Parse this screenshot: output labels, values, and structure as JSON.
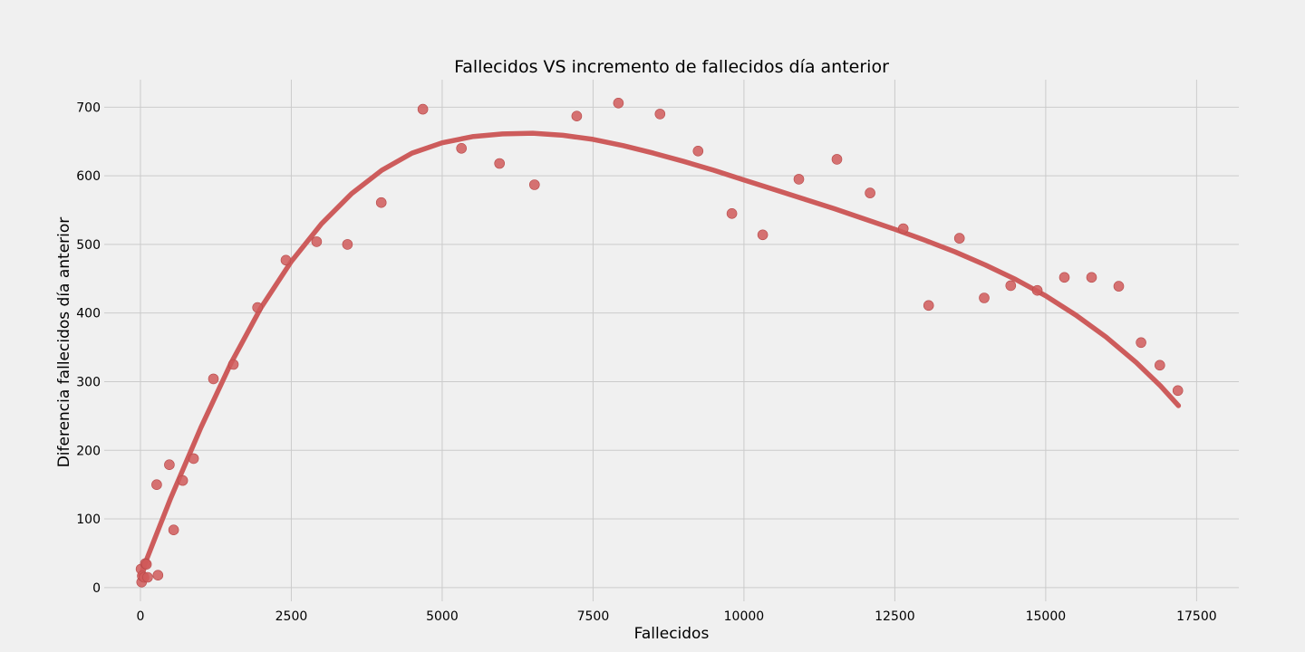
{
  "chart_data": {
    "type": "scatter",
    "title": "Fallecidos VS incremento de fallecidos día anterior",
    "xlabel": "Fallecidos",
    "ylabel": "Diferencia fallecidos día anterior",
    "xlim": [
      -600,
      18200
    ],
    "ylim": [
      -20,
      740
    ],
    "xticks": [
      0,
      2500,
      5000,
      7500,
      10000,
      12500,
      15000,
      17500
    ],
    "yticks": [
      0,
      100,
      200,
      300,
      400,
      500,
      600,
      700
    ],
    "grid": true,
    "point_color": "#d05a5a",
    "line_color": "#cd5c5c",
    "background_color": "#f0f0f0",
    "grid_color": "#cbcbcb",
    "series": [
      {
        "kind": "scatter",
        "points": [
          [
            10,
            27
          ],
          [
            20,
            8
          ],
          [
            30,
            17
          ],
          [
            60,
            15
          ],
          [
            80,
            35
          ],
          [
            100,
            34
          ],
          [
            120,
            15
          ],
          [
            270,
            150
          ],
          [
            290,
            18
          ],
          [
            480,
            179
          ],
          [
            550,
            84
          ],
          [
            700,
            156
          ],
          [
            880,
            188
          ],
          [
            1210,
            304
          ],
          [
            1540,
            325
          ],
          [
            1940,
            408
          ],
          [
            2410,
            477
          ],
          [
            2920,
            504
          ],
          [
            3430,
            500
          ],
          [
            3990,
            561
          ],
          [
            4680,
            697
          ],
          [
            5320,
            640
          ],
          [
            5950,
            618
          ],
          [
            6530,
            587
          ],
          [
            7230,
            687
          ],
          [
            7920,
            706
          ],
          [
            8610,
            690
          ],
          [
            9240,
            636
          ],
          [
            9800,
            545
          ],
          [
            10310,
            514
          ],
          [
            10910,
            595
          ],
          [
            11540,
            624
          ],
          [
            12090,
            575
          ],
          [
            12640,
            523
          ],
          [
            13060,
            411
          ],
          [
            13570,
            509
          ],
          [
            13980,
            422
          ],
          [
            14420,
            440
          ],
          [
            14860,
            433
          ],
          [
            15310,
            452
          ],
          [
            15760,
            452
          ],
          [
            16210,
            439
          ],
          [
            16580,
            357
          ],
          [
            16890,
            324
          ],
          [
            17190,
            287
          ]
        ]
      },
      {
        "kind": "line",
        "points": [
          [
            0,
            18
          ],
          [
            250,
            74
          ],
          [
            500,
            130
          ],
          [
            1000,
            233
          ],
          [
            1500,
            327
          ],
          [
            2000,
            408
          ],
          [
            2500,
            475
          ],
          [
            3000,
            530
          ],
          [
            3500,
            574
          ],
          [
            4000,
            608
          ],
          [
            4500,
            633
          ],
          [
            5000,
            648
          ],
          [
            5500,
            657
          ],
          [
            6000,
            661
          ],
          [
            6500,
            662
          ],
          [
            7000,
            659
          ],
          [
            7500,
            653
          ],
          [
            8000,
            644
          ],
          [
            8500,
            633
          ],
          [
            9000,
            621
          ],
          [
            9500,
            608
          ],
          [
            10000,
            594
          ],
          [
            10500,
            580
          ],
          [
            11000,
            566
          ],
          [
            11500,
            552
          ],
          [
            12000,
            537
          ],
          [
            12500,
            522
          ],
          [
            13000,
            506
          ],
          [
            13500,
            489
          ],
          [
            14000,
            470
          ],
          [
            14500,
            449
          ],
          [
            15000,
            425
          ],
          [
            15500,
            397
          ],
          [
            16000,
            365
          ],
          [
            16500,
            328
          ],
          [
            16900,
            294
          ],
          [
            17200,
            265
          ]
        ]
      }
    ]
  }
}
